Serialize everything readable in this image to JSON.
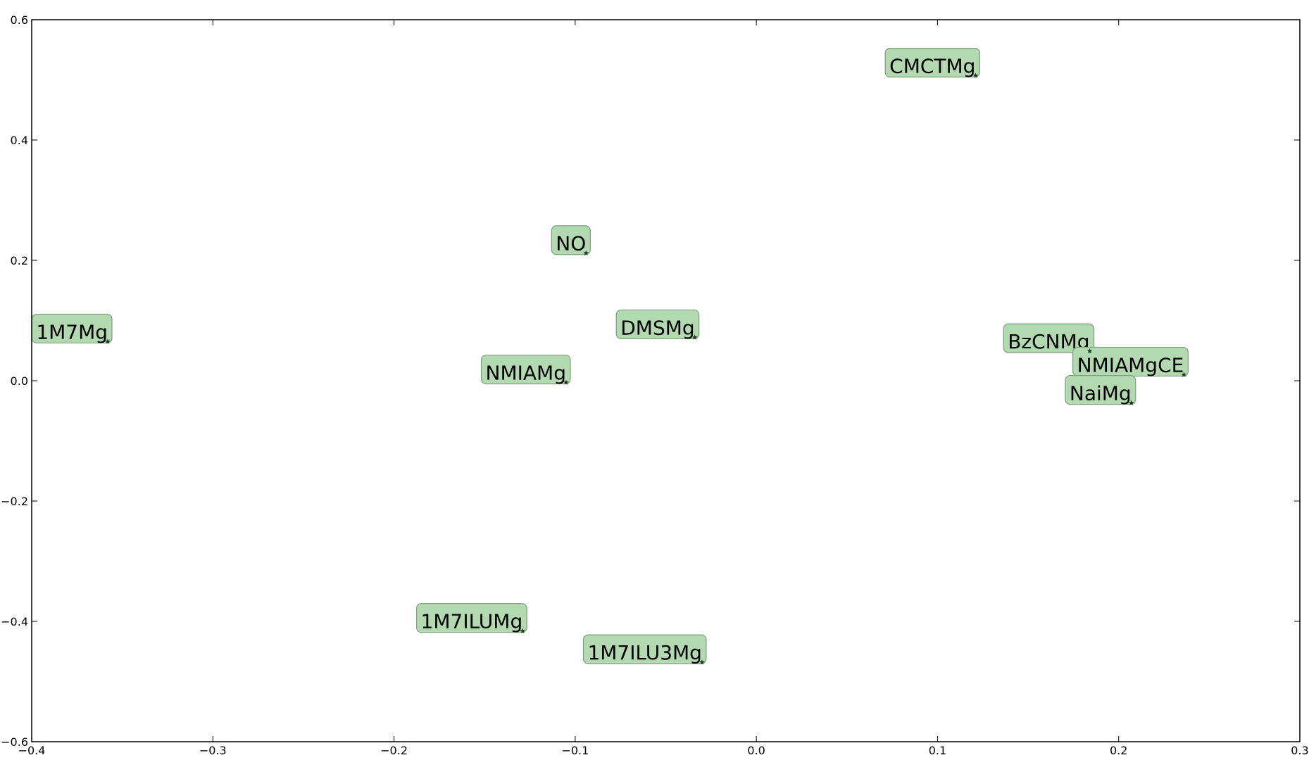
{
  "colors": {
    "label_fill": "#b3d9b0",
    "label_stroke": "#7f9f7f",
    "marker": "#1f3d1f",
    "axes": "#000000",
    "background": "#ffffff"
  },
  "chart_data": {
    "type": "scatter",
    "title": "",
    "xlabel": "",
    "ylabel": "",
    "xlim": [
      -0.4,
      0.3
    ],
    "ylim": [
      -0.6,
      0.6
    ],
    "grid": false,
    "marker": "star",
    "x_ticks": [
      -0.4,
      -0.3,
      -0.2,
      -0.1,
      0.0,
      0.1,
      0.2,
      0.3
    ],
    "y_ticks": [
      -0.6,
      -0.4,
      -0.2,
      0.0,
      0.2,
      0.4,
      0.6
    ],
    "x_tick_labels": [
      "−0.4",
      "−0.3",
      "−0.2",
      "−0.1",
      "0.0",
      "0.1",
      "0.2",
      "0.3"
    ],
    "y_tick_labels": [
      "−0.6",
      "−0.4",
      "−0.2",
      "0.0",
      "0.2",
      "0.4",
      "0.6"
    ],
    "points": [
      {
        "label": "CMCTMg",
        "x": 0.121,
        "y": 0.507
      },
      {
        "label": "NO",
        "x": -0.094,
        "y": 0.212
      },
      {
        "label": "1M7Mg",
        "x": -0.358,
        "y": 0.065
      },
      {
        "label": "DMSMg",
        "x": -0.034,
        "y": 0.072
      },
      {
        "label": "NMIAMg",
        "x": -0.105,
        "y": -0.003
      },
      {
        "label": "BzCNMg",
        "x": 0.184,
        "y": 0.049
      },
      {
        "label": "NMIAMgCE",
        "x": 0.236,
        "y": 0.01
      },
      {
        "label": "NaiMg",
        "x": 0.207,
        "y": -0.037
      },
      {
        "label": "1M7ILUMg",
        "x": -0.129,
        "y": -0.416
      },
      {
        "label": "1M7ILU3Mg",
        "x": -0.03,
        "y": -0.468
      }
    ]
  }
}
